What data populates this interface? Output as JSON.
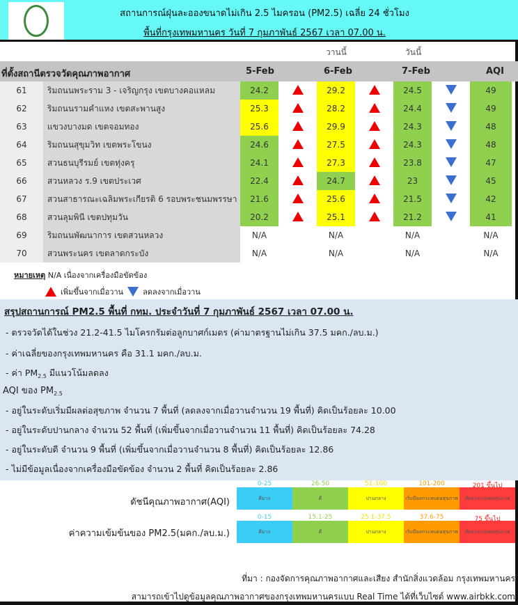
{
  "header": {
    "title_line1": "สถานการณ์ฝุ่นละอองขนาดไม่เกิน 2.5 ไมครอน (PM2.5) เฉลี่ย 24 ชั่วโมง",
    "title_line2": "พื้นที่กรุงเทพมหานคร วันที่ 7 กุมภาพันธ์ 2567 เวลา 07.00 น.",
    "logo": "bangkok-city-seal"
  },
  "table": {
    "yesterday_label": "วานนี้",
    "today_label": "วันนี้",
    "columns": [
      "ที่ตั้งสถานีตรวจวัดคุณภาพอากาศ",
      "5-Feb",
      "6-Feb",
      "7-Feb",
      "AQI"
    ],
    "rows": [
      {
        "no": "61",
        "station": "ริมถนนพระราม 3 - เจริญกรุง เขตบางคอแหลม",
        "d5": "24.2",
        "d5l": "good",
        "a1": "up",
        "d6": "29.2",
        "d6l": "mod",
        "a2": "up",
        "d7": "24.5",
        "d7l": "good",
        "a3": "down",
        "aqi": "49",
        "aqil": "good"
      },
      {
        "no": "62",
        "station": "ริมถนนรามคำแหง เขตสะพานสูง",
        "d5": "25.3",
        "d5l": "mod",
        "a1": "up",
        "d6": "28.2",
        "d6l": "mod",
        "a2": "up",
        "d7": "24.4",
        "d7l": "good",
        "a3": "down",
        "aqi": "49",
        "aqil": "good"
      },
      {
        "no": "63",
        "station": "แขวงบางมด เขตจอมทอง",
        "d5": "25.6",
        "d5l": "mod",
        "a1": "up",
        "d6": "29.9",
        "d6l": "mod",
        "a2": "up",
        "d7": "24.3",
        "d7l": "good",
        "a3": "down",
        "aqi": "48",
        "aqil": "good"
      },
      {
        "no": "64",
        "station": "ริมถนนสุขุมวิท เขตพระโขนง",
        "d5": "24.6",
        "d5l": "good",
        "a1": "up",
        "d6": "27.5",
        "d6l": "mod",
        "a2": "up",
        "d7": "24.3",
        "d7l": "good",
        "a3": "down",
        "aqi": "48",
        "aqil": "good"
      },
      {
        "no": "65",
        "station": "สวนธนบุรีรมย์ เขตทุ่งครุ",
        "d5": "24.1",
        "d5l": "good",
        "a1": "up",
        "d6": "27.3",
        "d6l": "mod",
        "a2": "up",
        "d7": "23.8",
        "d7l": "good",
        "a3": "down",
        "aqi": "47",
        "aqil": "good"
      },
      {
        "no": "66",
        "station": "สวนหลวง ร.9 เขตประเวศ",
        "d5": "22.4",
        "d5l": "good",
        "a1": "up",
        "d6": "24.7",
        "d6l": "good",
        "a2": "up",
        "d7": "23",
        "d7l": "good",
        "a3": "down",
        "aqi": "45",
        "aqil": "good"
      },
      {
        "no": "67",
        "station": "สวนสาธารณะเฉลิมพระเกียรติ 6 รอบพระชนมพรรษา",
        "d5": "21.6",
        "d5l": "good",
        "a1": "up",
        "d6": "25.6",
        "d6l": "mod",
        "a2": "up",
        "d7": "21.5",
        "d7l": "good",
        "a3": "down",
        "aqi": "42",
        "aqil": "good"
      },
      {
        "no": "68",
        "station": "สวนลุมพินี เขตปทุมวัน",
        "d5": "20.2",
        "d5l": "good",
        "a1": "up",
        "d6": "25.1",
        "d6l": "mod",
        "a2": "up",
        "d7": "21.2",
        "d7l": "good",
        "a3": "down",
        "aqi": "41",
        "aqil": "good"
      },
      {
        "no": "69",
        "station": "ริมถนนพัฒนาการ เขตสวนหลวง",
        "d5": "N/A",
        "d5l": "",
        "a1": "",
        "d6": "N/A",
        "d6l": "",
        "a2": "",
        "d7": "N/A",
        "d7l": "",
        "a3": "",
        "aqi": "N/A",
        "aqil": ""
      },
      {
        "no": "70",
        "station": "สวนพระนคร เขตลาดกระบัง",
        "d5": "N/A",
        "d5l": "",
        "a1": "",
        "d6": "N/A",
        "d6l": "",
        "a2": "",
        "d7": "N/A",
        "d7l": "",
        "a3": "",
        "aqi": "N/A",
        "aqil": ""
      }
    ]
  },
  "notes": {
    "label": "หมายเหตุ",
    "text": "N/A เนื่องจากเครื่องมือขัดข้อง",
    "up_label": "เพิ่มขึ้นจากเมื่อวาน",
    "down_label": "ลดลงจากเมื่อวาน"
  },
  "summary": {
    "title": "สรุปสถานการณ์ PM2.5 พื้นที่ กทม. ประจำวันที่ 7 กุมภาพันธ์ 2567 เวลา 07.00 น.",
    "line1": "- ตรวจวัดได้ในช่วง 21.2-41.5 ไมโครกรัมต่อลูกบาศก์เมตร (ค่ามาตรฐานไม่เกิน 37.5 มคก./ลบ.ม.)",
    "line2": "- ค่าเฉลี่ยของกรุงเทพมหานคร คือ 31.1 มคก./ลบ.ม.",
    "line3_pre": "- ค่า PM",
    "line3_sub": "2.5",
    "line3_post": "  มีแนวโน้มลดลง",
    "aqi_title_pre": "AQI ของ PM",
    "aqi_title_sub": "2.5",
    "aqi_lines": [
      "- อยู่ในระดับเริ่มมีผลต่อสุขภาพ จำนวน 7 พื้นที่ (ลดลงจากเมื่อวานจำนวน 19 พื้นที่) คิดเป็นร้อยละ  10.00",
      "- อยู่ในระดับปานกลาง จำนวน 52 พื้นที่ (เพิ่มขึ้นจากเมื่อวานจำนวน 11 พื้นที่) คิดเป็นร้อยละ  74.28",
      "- อยู่ในระดับดี จำนวน  9 พื้นที่ (เพิ่มขึ้นจากเมื่อวานจำนวน 8 พื้นที่) คิดเป็นร้อยละ  12.86",
      "- ไม่มีข้อมูลเนื่องจากเครื่องมือขัดข้อง จำนวน 2 พื้นที่ คิดเป็นร้อยละ  2.86"
    ]
  },
  "legend": {
    "levels": [
      "ดีมาก",
      "ดี",
      "ปานกลาง",
      "เริ่มมีผลกระทบต่อสุขภาพ",
      "มีผลกระทบต่อสุขภาพ"
    ],
    "colors": [
      "#3ccdf7",
      "#8fd14f",
      "#ffff00",
      "#ff9a00",
      "#ff3b3b"
    ],
    "aqi_label": "ดัชนีคุณภาพอากาศ(AQI)",
    "aqi_ranges": [
      "0-25",
      "26-50",
      "51-100",
      "101-200",
      "201 ขึ้นไป"
    ],
    "pm_label": "ค่าความเข้มข้นของ PM2.5(มคก./ลบ.ม.)",
    "pm_ranges": [
      "0-15",
      "15.1-25",
      "25.1-37.5",
      "37.6-75",
      "75 ขึ้นไป"
    ]
  },
  "footer": {
    "source": "ที่มา : กองจัดการคุณภาพอากาศและเสียง สำนักสิ่งแวดล้อม กรุงเทพมหานคร",
    "realtime": "สามารถเข้าไปดูข้อมูลคุณภาพอากาศของกรุงเทพมหานครแบบ Real Time ได้ที่เว็บไซต์ www.airbkk.com"
  }
}
